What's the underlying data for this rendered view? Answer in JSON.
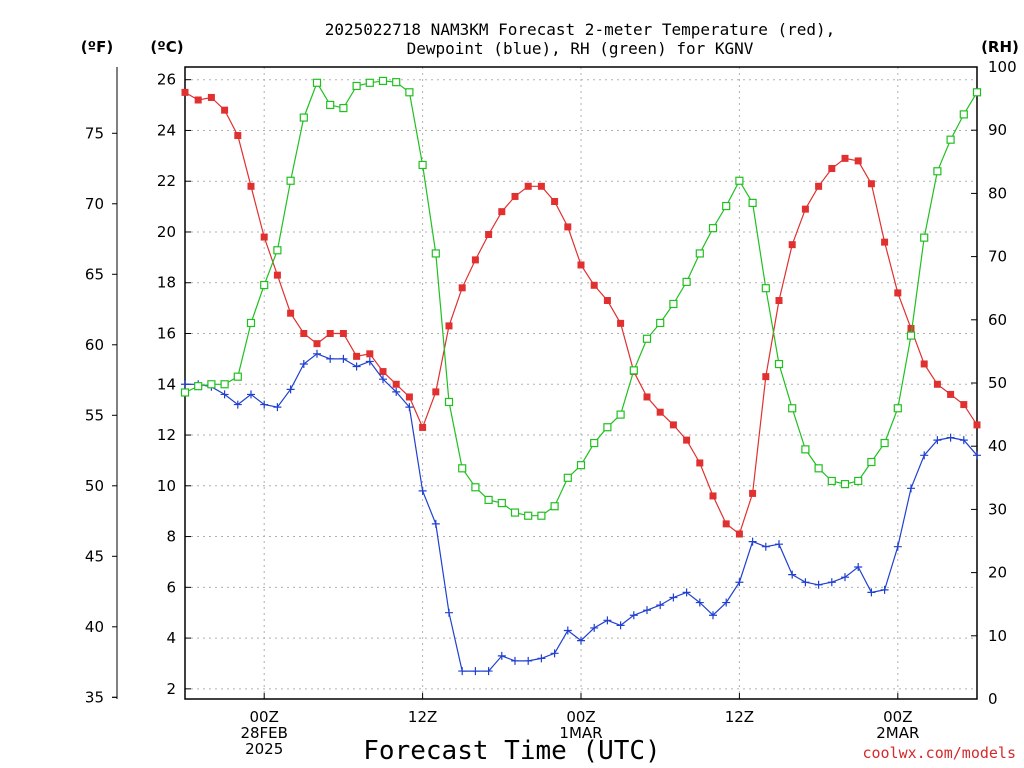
{
  "chart_data": {
    "type": "line",
    "title_line1": "2025022718 NAM3KM Forecast 2-meter Temperature (red),",
    "title_line2": "Dewpoint (blue), RH (green) for KGNV",
    "xlabel": "Forecast Time (UTC)",
    "credit": "coolwx.com/models",
    "unit_f": "(ºF)",
    "unit_c": "(ºC)",
    "unit_rh": "(RH)",
    "celsius_range": [
      1.6,
      26.5
    ],
    "rh_range": [
      0,
      100
    ],
    "x_hours": [
      0,
      1,
      2,
      3,
      4,
      5,
      6,
      7,
      8,
      9,
      10,
      11,
      12,
      13,
      14,
      15,
      16,
      17,
      18,
      19,
      20,
      21,
      22,
      23,
      24,
      25,
      26,
      27,
      28,
      29,
      30,
      31,
      32,
      33,
      34,
      35,
      36,
      37,
      38,
      39,
      40,
      41,
      42,
      43,
      44,
      45,
      46,
      47,
      48,
      49,
      50,
      51,
      52,
      53,
      54,
      55,
      56,
      57,
      58,
      59,
      60
    ],
    "x_axis": {
      "start": "2025-02-27 18Z",
      "range_hours": [
        0,
        60
      ],
      "ticks": [
        {
          "hour": 6,
          "line1": "00Z",
          "line2": "28FEB",
          "line3": "2025"
        },
        {
          "hour": 18,
          "line1": "12Z",
          "line2": "",
          "line3": ""
        },
        {
          "hour": 30,
          "line1": "00Z",
          "line2": "1MAR",
          "line3": ""
        },
        {
          "hour": 42,
          "line1": "12Z",
          "line2": "",
          "line3": ""
        },
        {
          "hour": 54,
          "line1": "00Z",
          "line2": "2MAR",
          "line3": ""
        }
      ]
    },
    "y_left_f_ticks": [
      35,
      40,
      45,
      50,
      55,
      60,
      65,
      70,
      75
    ],
    "y_left_c_ticks": [
      2,
      4,
      6,
      8,
      10,
      12,
      14,
      16,
      18,
      20,
      22,
      24,
      26
    ],
    "y_right_rh_ticks": [
      0,
      10,
      20,
      30,
      40,
      50,
      60,
      70,
      80,
      90,
      100
    ],
    "grid": true,
    "series": [
      {
        "name": "Temperature",
        "unit": "C",
        "color": "#e03030",
        "marker": "filled-square",
        "values": [
          25.5,
          25.2,
          25.3,
          24.8,
          23.8,
          21.8,
          19.8,
          18.3,
          16.8,
          16.0,
          15.6,
          16.0,
          16.0,
          15.1,
          15.2,
          14.5,
          14.0,
          13.5,
          12.3,
          13.7,
          16.3,
          17.8,
          18.9,
          19.9,
          20.8,
          21.4,
          21.8,
          21.8,
          21.2,
          20.2,
          18.7,
          17.9,
          17.3,
          16.4,
          14.5,
          13.5,
          12.9,
          12.4,
          11.8,
          10.9,
          9.6,
          8.5,
          8.1,
          9.7,
          14.3,
          17.3,
          19.5,
          20.9,
          21.8,
          22.5,
          22.9,
          22.8,
          21.9,
          19.6,
          17.6,
          16.2,
          14.8,
          14.0,
          13.6,
          13.2,
          12.4
        ]
      },
      {
        "name": "Dewpoint",
        "unit": "C",
        "color": "#2040d0",
        "marker": "plus",
        "values": [
          14.0,
          14.0,
          13.9,
          13.6,
          13.2,
          13.6,
          13.2,
          13.1,
          13.8,
          14.8,
          15.2,
          15.0,
          15.0,
          14.7,
          14.9,
          14.2,
          13.7,
          13.1,
          9.8,
          8.5,
          5.0,
          2.7,
          2.7,
          2.7,
          3.3,
          3.1,
          3.1,
          3.2,
          3.4,
          4.3,
          3.9,
          4.4,
          4.7,
          4.5,
          4.9,
          5.1,
          5.3,
          5.6,
          5.8,
          5.4,
          4.9,
          5.4,
          6.2,
          7.8,
          7.6,
          7.7,
          6.5,
          6.2,
          6.1,
          6.2,
          6.4,
          6.8,
          5.8,
          5.9,
          7.6,
          9.9,
          11.2,
          11.8,
          11.9,
          11.8,
          11.2
        ]
      },
      {
        "name": "RH",
        "unit": "%",
        "color": "#20c020",
        "marker": "open-square",
        "values": [
          48.5,
          49.5,
          49.8,
          49.8,
          51.0,
          59.5,
          65.5,
          71.0,
          82.0,
          92.0,
          97.5,
          94.0,
          93.5,
          97.0,
          97.5,
          97.8,
          97.6,
          96.0,
          84.5,
          70.5,
          47.0,
          36.5,
          33.5,
          31.5,
          31.0,
          29.5,
          29.0,
          29.0,
          30.5,
          35.0,
          37.0,
          40.5,
          43.0,
          45.0,
          52.0,
          57.0,
          59.5,
          62.5,
          66.0,
          70.5,
          74.5,
          78.0,
          82.0,
          78.5,
          65.0,
          53.0,
          46.0,
          39.5,
          36.5,
          34.5,
          34.0,
          34.5,
          37.5,
          40.5,
          46.0,
          57.5,
          73.0,
          83.5,
          88.5,
          92.5,
          96.0
        ]
      }
    ]
  }
}
